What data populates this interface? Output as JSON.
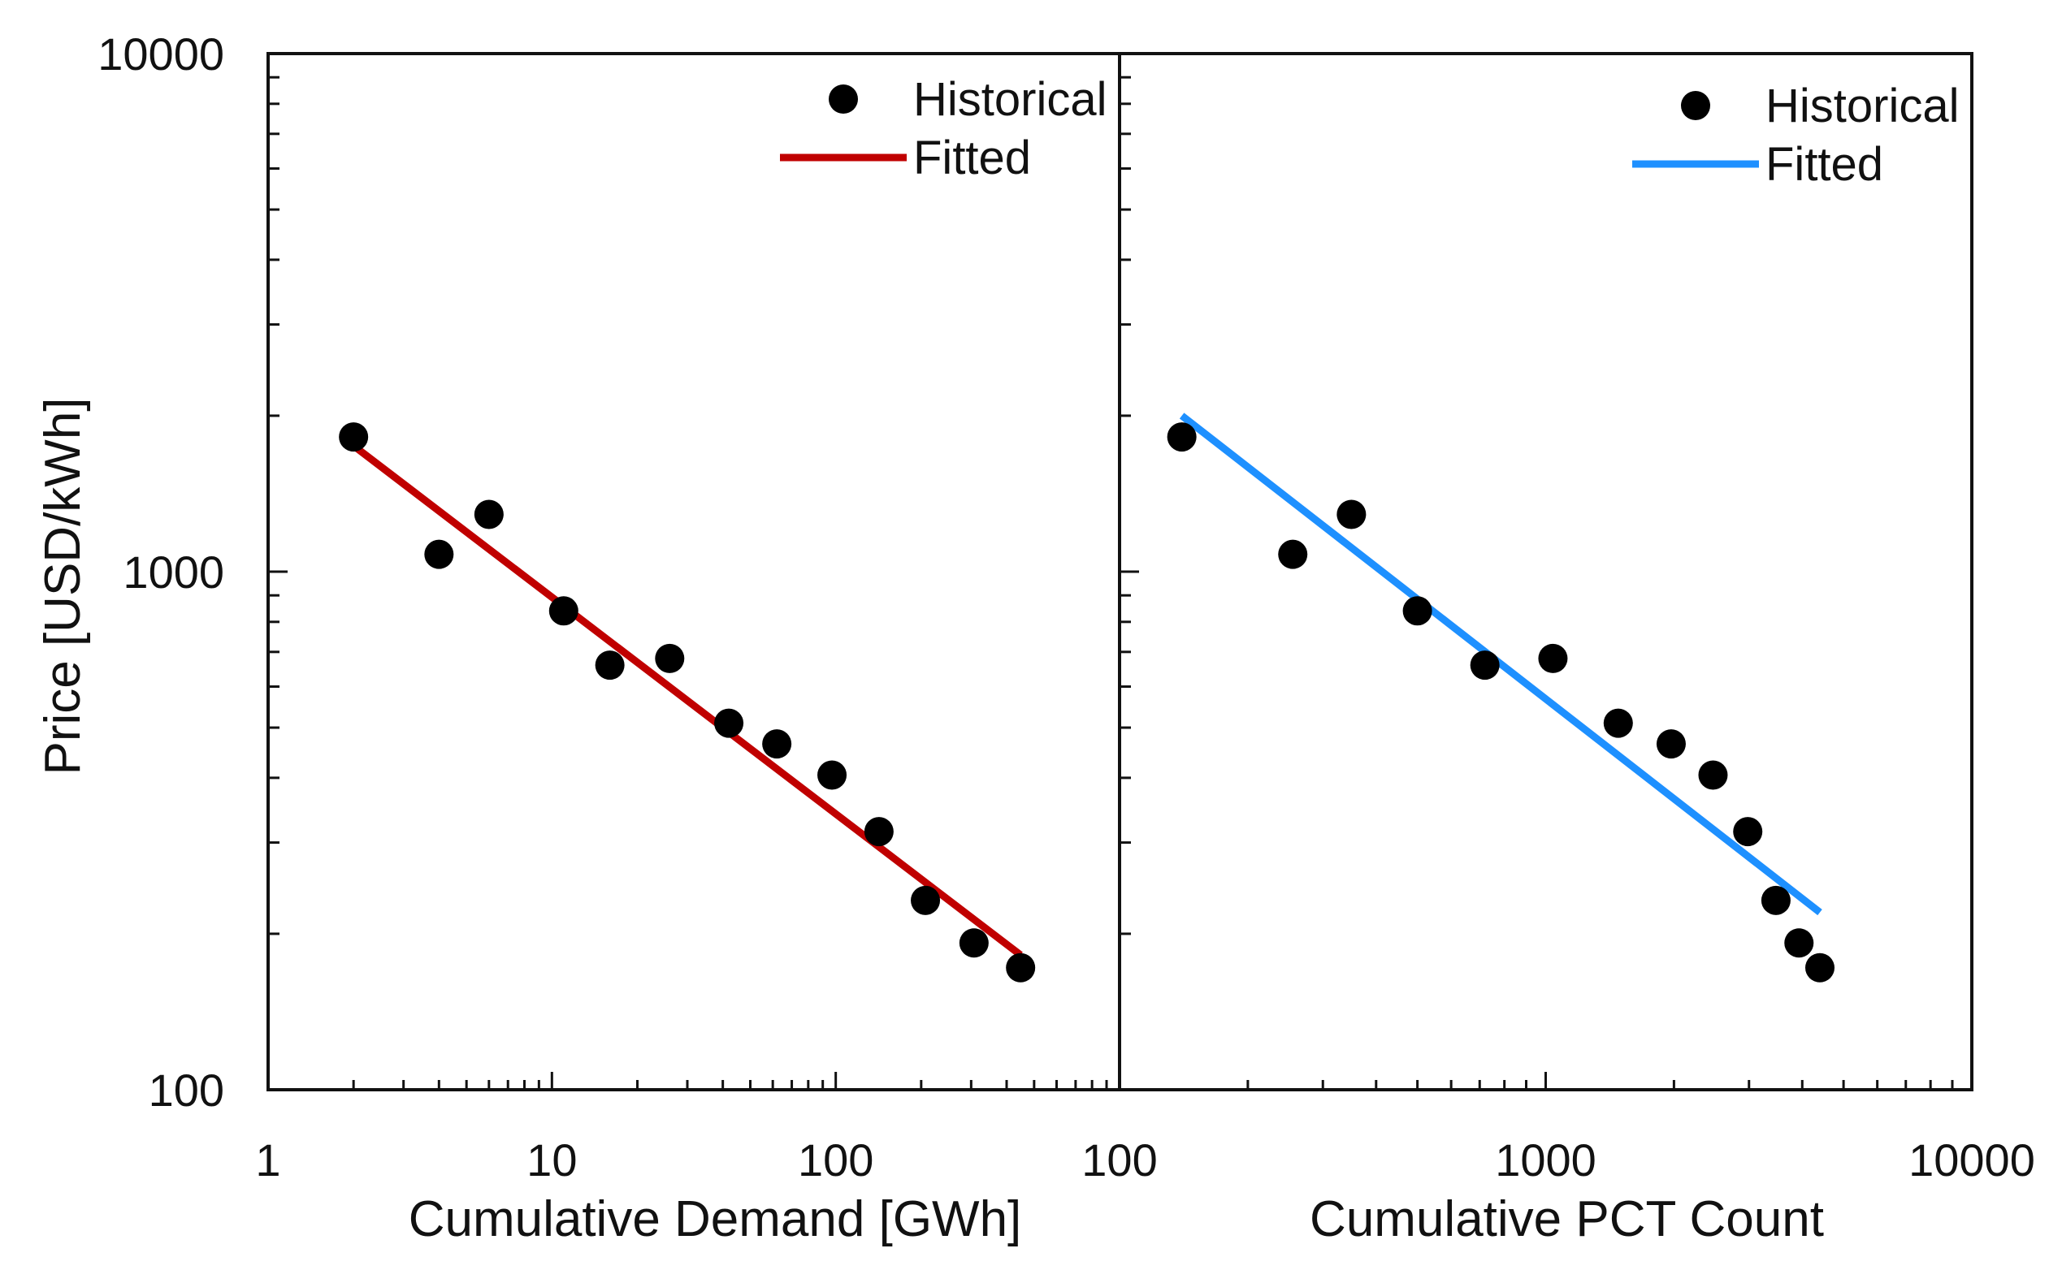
{
  "chart_data": {
    "type": "scatter",
    "ylabel": "Price [USD/kWh]",
    "y_scale": "log",
    "ylim": [
      100,
      10000
    ],
    "y_ticks": [
      100,
      1000,
      10000
    ],
    "y_tick_labels": [
      "100",
      "1000",
      "10000"
    ],
    "panels": [
      {
        "id": "demand",
        "xlabel": "Cumulative Demand [GWh]",
        "x_scale": "log",
        "xlim": [
          1,
          1000
        ],
        "x_ticks": [
          1,
          10,
          100
        ],
        "x_tick_labels": [
          "1",
          "10",
          "100"
        ],
        "fitted_color": "#c00000",
        "legend": {
          "position": "top-right",
          "historical": "Historical",
          "fitted": "Fitted"
        },
        "series": [
          {
            "name": "Historical",
            "x": [
              2,
              4,
              6,
              11,
              16,
              26,
              42,
              62,
              97,
              142,
              207,
              307,
              448
            ],
            "y": [
              1820,
              1080,
              1290,
              840,
              660,
              680,
              510,
              465,
              405,
              315,
              232,
              192,
              172
            ]
          },
          {
            "name": "Fitted",
            "x": [
              2,
              448
            ],
            "y": [
              1750,
              182
            ]
          }
        ]
      },
      {
        "id": "pct",
        "xlabel": "Cumulative PCT Count",
        "x_scale": "log",
        "xlim": [
          100,
          10000
        ],
        "x_ticks": [
          100,
          1000,
          10000
        ],
        "x_tick_labels": [
          "100",
          "1000",
          "10000"
        ],
        "fitted_color": "#1e90ff",
        "legend": {
          "position": "top-right",
          "historical": "Historical",
          "fitted": "Fitted"
        },
        "series": [
          {
            "name": "Historical",
            "x": [
              140,
              255,
              350,
              500,
              720,
              1040,
              1480,
              1970,
              2470,
              2980,
              3470,
              3930,
              4400
            ],
            "y": [
              1820,
              1080,
              1290,
              840,
              660,
              680,
              510,
              465,
              405,
              315,
              232,
              192,
              172
            ]
          },
          {
            "name": "Fitted",
            "x": [
              140,
              4400
            ],
            "y": [
              2000,
              220
            ]
          }
        ]
      }
    ]
  }
}
